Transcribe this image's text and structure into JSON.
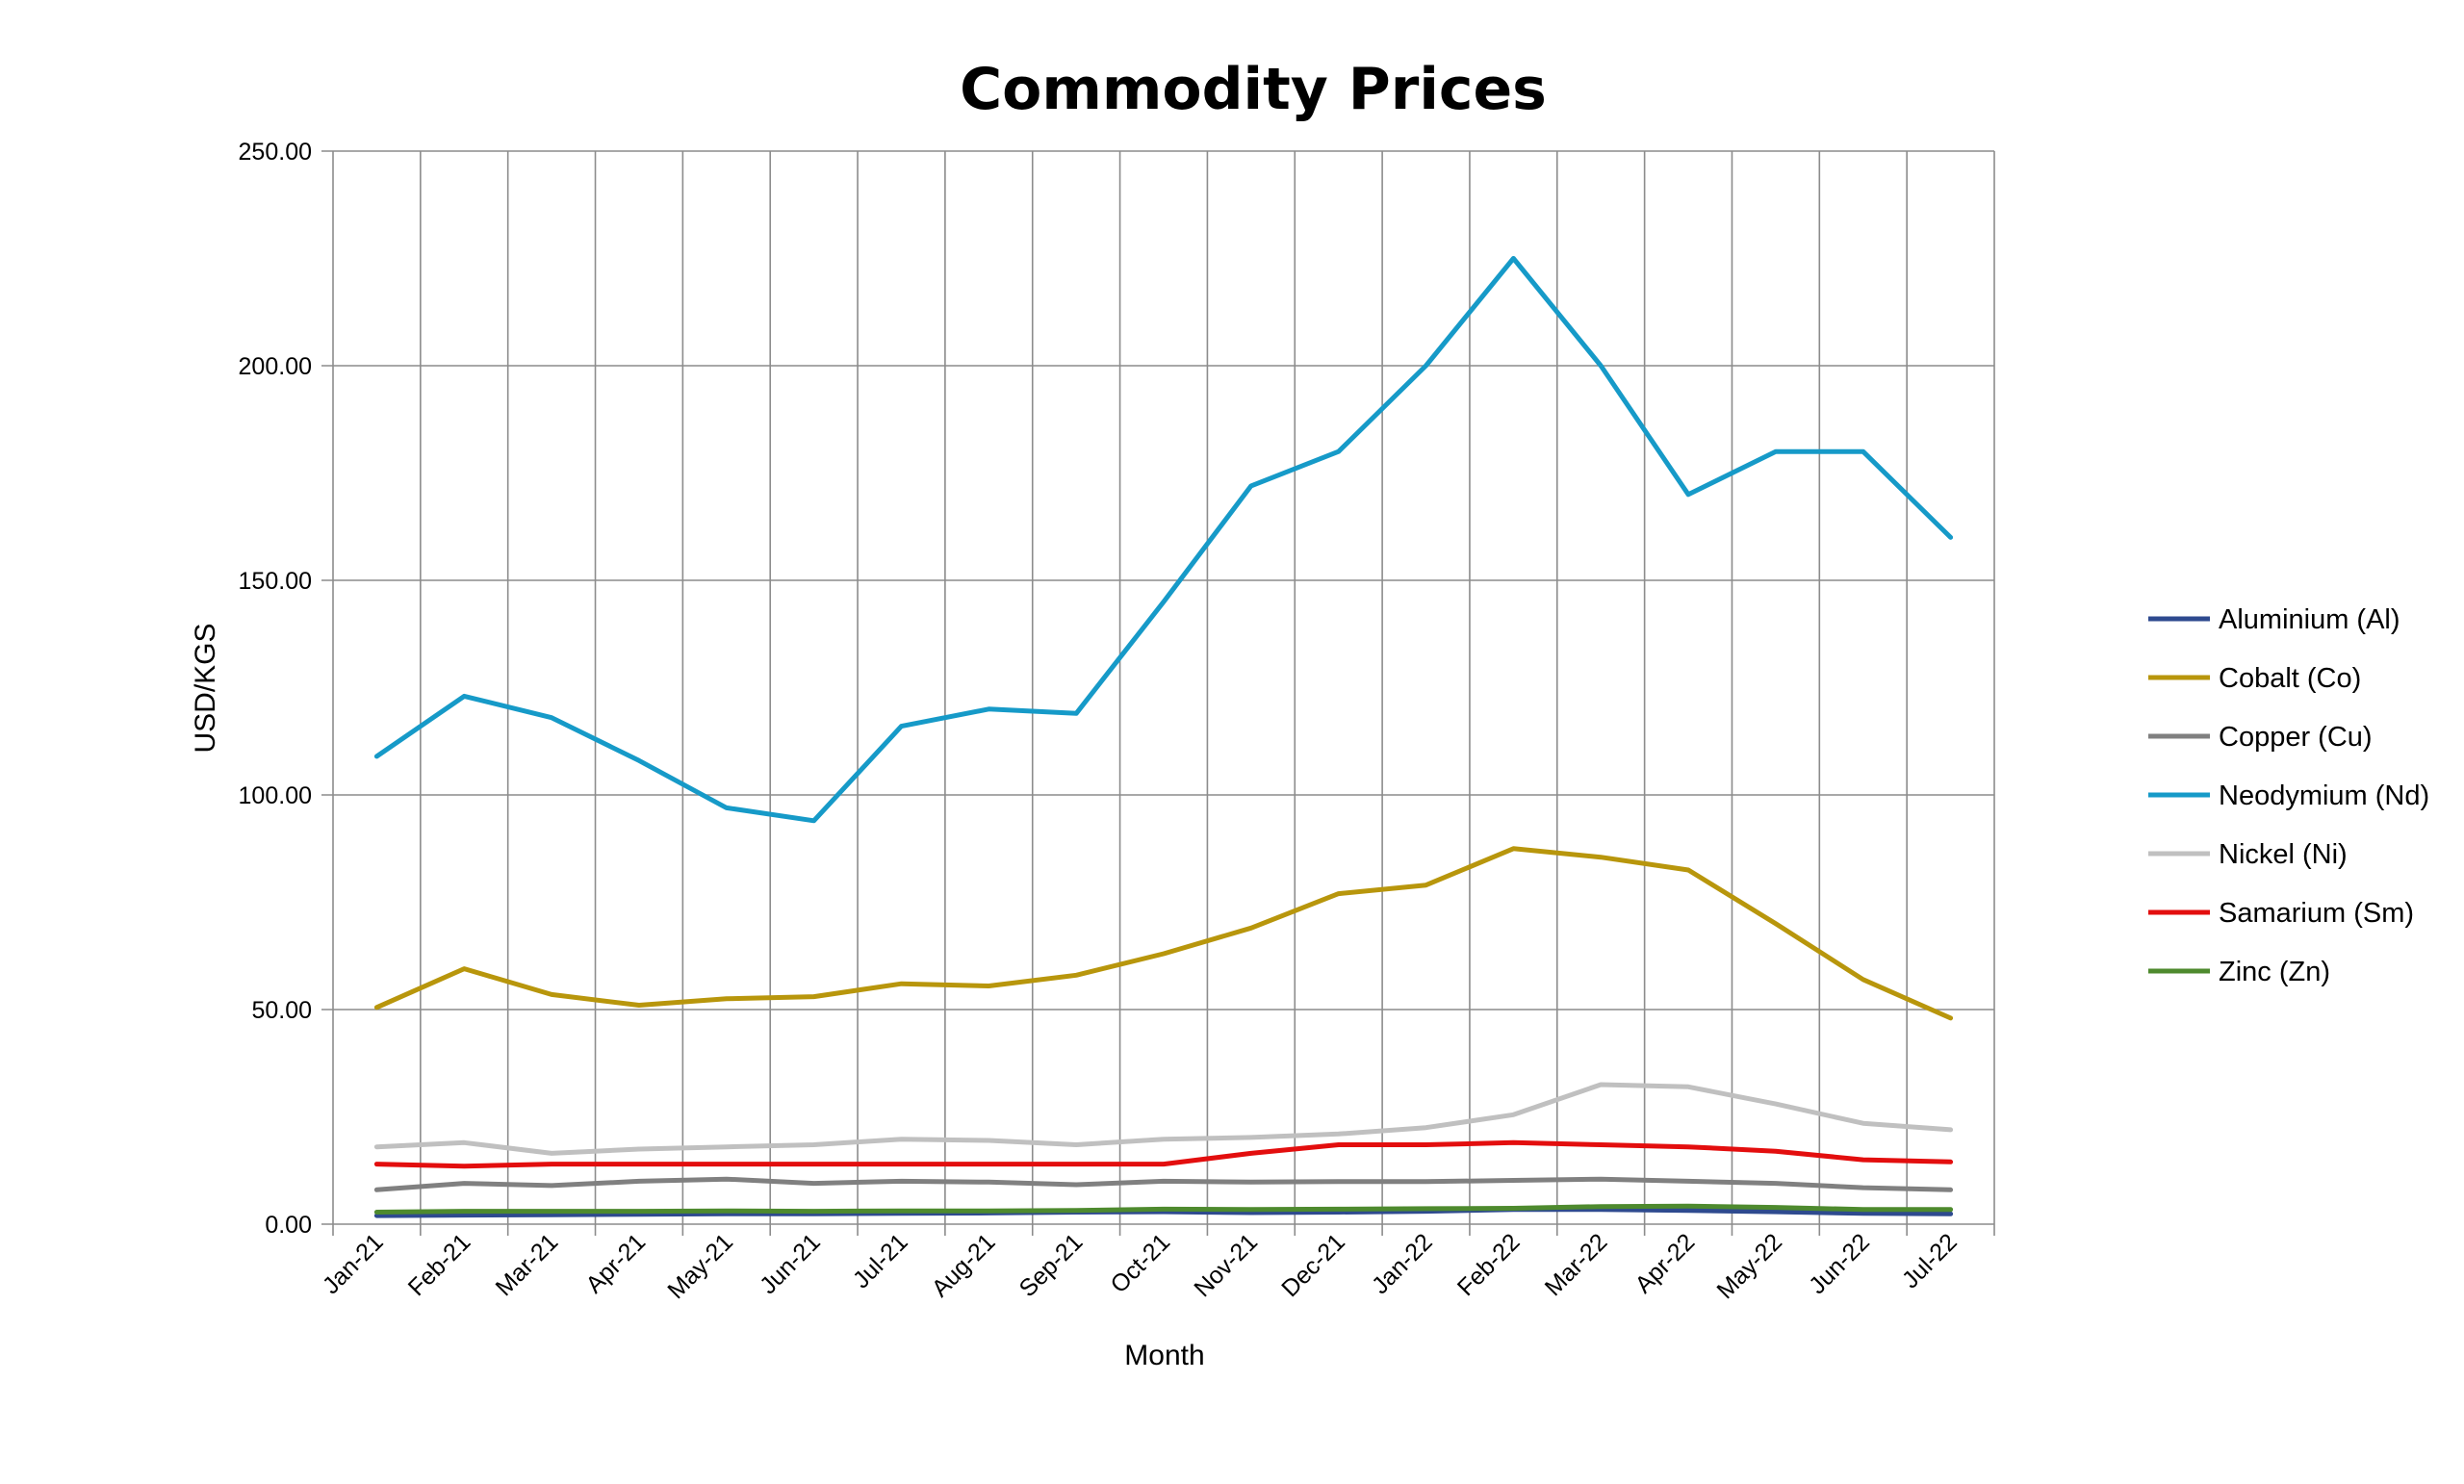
{
  "chart_data": {
    "type": "line",
    "title": "Commodity Prices",
    "xlabel": "Month",
    "ylabel": "USD/KGS",
    "ylim": [
      0,
      250
    ],
    "y_ticks": [
      "0.00",
      "50.00",
      "100.00",
      "150.00",
      "200.00",
      "250.00"
    ],
    "categories": [
      "Jan-21",
      "Feb-21",
      "Mar-21",
      "Apr-21",
      "May-21",
      "Jun-21",
      "Jul-21",
      "Aug-21",
      "Sep-21",
      "Oct-21",
      "Nov-21",
      "Dec-21",
      "Jan-22",
      "Feb-22",
      "Mar-22",
      "Apr-22",
      "May-22",
      "Jun-22",
      "Jul-22"
    ],
    "grid": true,
    "legend_position": "right",
    "series": [
      {
        "name": "Aluminium (Al)",
        "color": "#2E4A8F",
        "values": [
          2.0,
          2.1,
          2.2,
          2.3,
          2.4,
          2.4,
          2.5,
          2.6,
          2.8,
          2.9,
          2.7,
          2.8,
          3.0,
          3.4,
          3.4,
          3.2,
          2.9,
          2.5,
          2.4
        ]
      },
      {
        "name": "Cobalt (Co)",
        "color": "#B8960C",
        "values": [
          50.5,
          59.5,
          53.5,
          51.0,
          52.5,
          53.0,
          56.0,
          55.5,
          58.0,
          63.0,
          69.0,
          77.0,
          79.0,
          87.5,
          85.5,
          82.5,
          70.0,
          57.0,
          48.0
        ]
      },
      {
        "name": "Copper (Cu)",
        "color": "#808080",
        "values": [
          8.0,
          9.5,
          9.0,
          10.0,
          10.5,
          9.5,
          10.0,
          9.8,
          9.2,
          10.0,
          9.8,
          9.9,
          9.9,
          10.2,
          10.5,
          10.0,
          9.5,
          8.5,
          8.0
        ]
      },
      {
        "name": "Neodymium (Nd)",
        "color": "#169AC8",
        "values": [
          109,
          123,
          118,
          108,
          97,
          94,
          116,
          120,
          119,
          145,
          172,
          180,
          200,
          225,
          200,
          170,
          180,
          180,
          160
        ]
      },
      {
        "name": "Nickel (Ni)",
        "color": "#C0C0C0",
        "values": [
          18.0,
          19.0,
          16.5,
          17.5,
          18.0,
          18.5,
          19.8,
          19.5,
          18.5,
          19.8,
          20.2,
          21.0,
          22.5,
          25.5,
          32.5,
          32.0,
          28.0,
          23.5,
          22.0
        ]
      },
      {
        "name": "Samarium (Sm)",
        "color": "#E30E0E",
        "values": [
          14.0,
          13.5,
          14.0,
          14.0,
          14.0,
          14.0,
          14.0,
          14.0,
          14.0,
          14.0,
          16.5,
          18.5,
          18.5,
          19.0,
          18.5,
          18.0,
          17.0,
          15.0,
          14.5
        ]
      },
      {
        "name": "Zinc (Zn)",
        "color": "#4E8A2E",
        "values": [
          2.8,
          3.0,
          3.0,
          3.0,
          3.1,
          3.0,
          3.1,
          3.1,
          3.2,
          3.5,
          3.4,
          3.5,
          3.6,
          3.7,
          4.1,
          4.2,
          3.9,
          3.4,
          3.4
        ]
      }
    ]
  }
}
